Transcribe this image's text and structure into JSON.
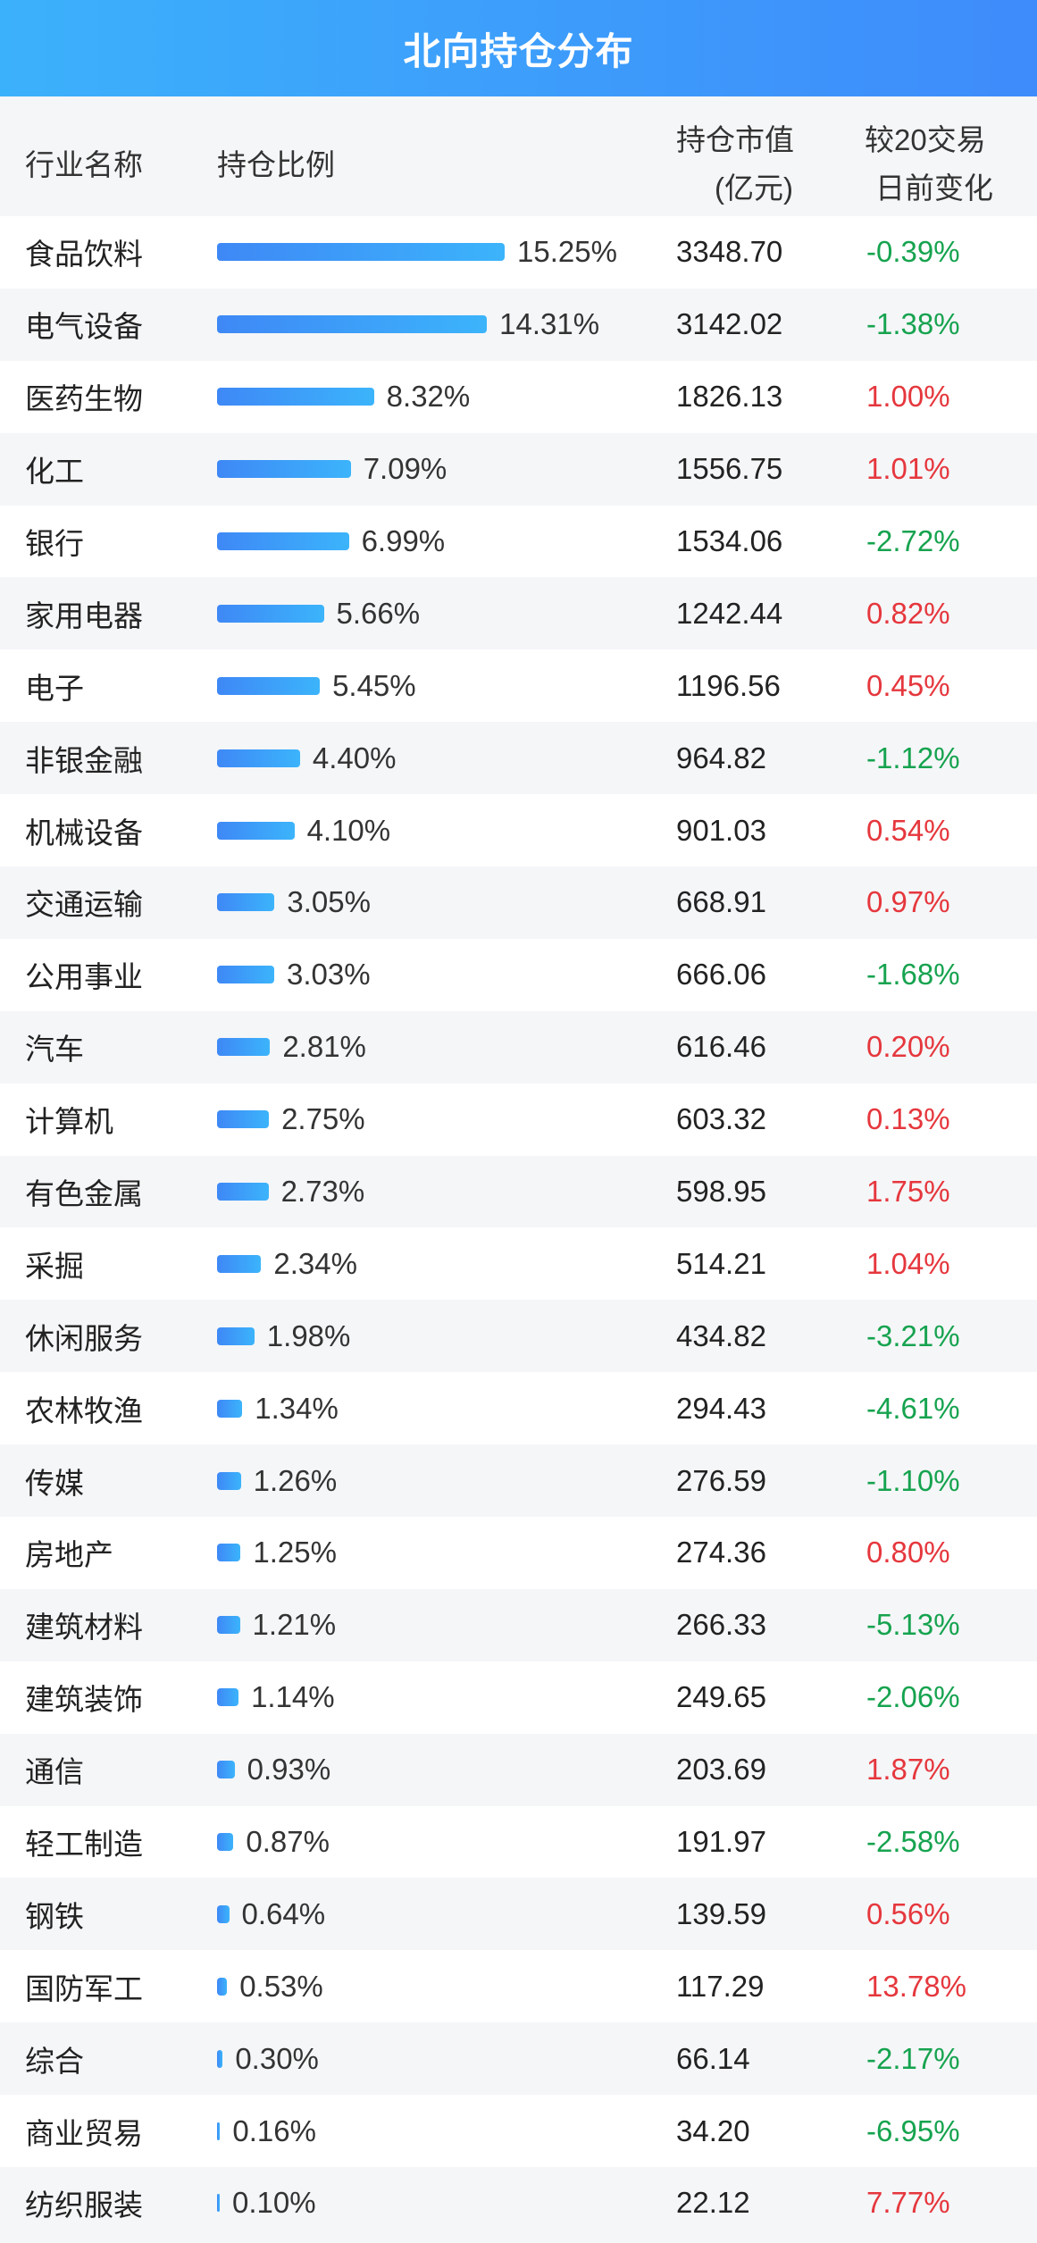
{
  "title": "北向持仓分布",
  "colors": {
    "up": "#e5373d",
    "down": "#16a34f",
    "bar_start": "#3e88f6",
    "bar_end": "#3cb4fb",
    "header_start": "#3cb1fb",
    "header_end": "#3e8bfb"
  },
  "columns": {
    "industry": "行业名称",
    "ratio": "持仓比例",
    "value_line1": "持仓市值",
    "value_line2": "(亿元)",
    "change_line1": "较20交易",
    "change_line2": "日前变化"
  },
  "chart_data": {
    "type": "bar",
    "orientation": "horizontal",
    "categories": [
      "食品饮料",
      "电气设备",
      "医药生物",
      "化工",
      "银行",
      "家用电器",
      "电子",
      "非银金融",
      "机械设备",
      "交通运输",
      "公用事业",
      "汽车",
      "计算机",
      "有色金属",
      "采掘",
      "休闲服务",
      "农林牧渔",
      "传媒",
      "房地产",
      "建筑材料",
      "建筑装饰",
      "通信",
      "轻工制造",
      "钢铁",
      "国防军工",
      "综合",
      "商业贸易",
      "纺织服装"
    ],
    "ratio_labels": [
      "15.25%",
      "14.31%",
      "8.32%",
      "7.09%",
      "6.99%",
      "5.66%",
      "5.45%",
      "4.40%",
      "4.10%",
      "3.05%",
      "3.03%",
      "2.81%",
      "2.75%",
      "2.73%",
      "2.34%",
      "1.98%",
      "1.34%",
      "1.26%",
      "1.25%",
      "1.21%",
      "1.14%",
      "0.93%",
      "0.87%",
      "0.64%",
      "0.53%",
      "0.30%",
      "0.16%",
      "0.10%"
    ],
    "values": [
      15.25,
      14.31,
      8.32,
      7.09,
      6.99,
      5.66,
      5.45,
      4.4,
      4.1,
      3.05,
      3.03,
      2.81,
      2.75,
      2.73,
      2.34,
      1.98,
      1.34,
      1.26,
      1.25,
      1.21,
      1.14,
      0.93,
      0.87,
      0.64,
      0.53,
      0.3,
      0.16,
      0.1
    ],
    "market_value": [
      "3348.70",
      "3142.02",
      "1826.13",
      "1556.75",
      "1534.06",
      "1242.44",
      "1196.56",
      "964.82",
      "901.03",
      "668.91",
      "666.06",
      "616.46",
      "603.32",
      "598.95",
      "514.21",
      "434.82",
      "294.43",
      "276.59",
      "274.36",
      "266.33",
      "249.65",
      "203.69",
      "191.97",
      "139.59",
      "117.29",
      "66.14",
      "34.20",
      "22.12"
    ],
    "change": [
      "-0.39%",
      "-1.38%",
      "1.00%",
      "1.01%",
      "-2.72%",
      "0.82%",
      "0.45%",
      "-1.12%",
      "0.54%",
      "0.97%",
      "-1.68%",
      "0.20%",
      "0.13%",
      "1.75%",
      "1.04%",
      "-3.21%",
      "-4.61%",
      "-1.10%",
      "0.80%",
      "-5.13%",
      "-2.06%",
      "1.87%",
      "-2.58%",
      "0.56%",
      "13.78%",
      "-2.17%",
      "-6.95%",
      "7.77%"
    ]
  }
}
